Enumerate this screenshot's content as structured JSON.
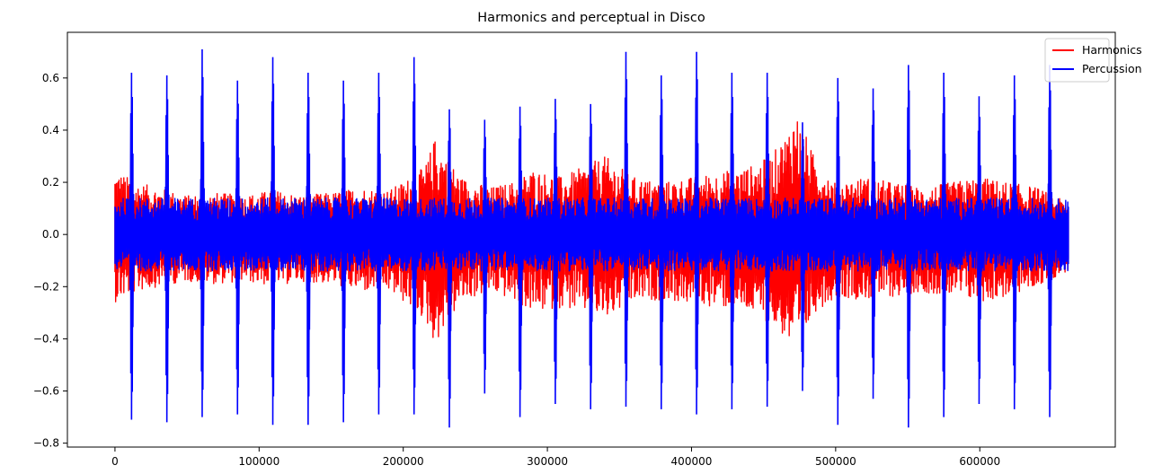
{
  "chart_data": {
    "type": "line",
    "title": "Harmonics and perceptual in Disco",
    "xlabel": "",
    "ylabel": "",
    "xlim": [
      -33000,
      694000
    ],
    "ylim": [
      -0.815,
      0.775
    ],
    "x_ticks": [
      0,
      100000,
      200000,
      300000,
      400000,
      500000,
      600000
    ],
    "x_tick_labels": [
      "0",
      "100000",
      "200000",
      "300000",
      "400000",
      "500000",
      "600000"
    ],
    "y_ticks": [
      -0.8,
      -0.6,
      -0.4,
      -0.2,
      0.0,
      0.2,
      0.4,
      0.6
    ],
    "y_tick_labels": [
      "−0.8",
      "−0.6",
      "−0.4",
      "−0.2",
      "0.0",
      "0.2",
      "0.4",
      "0.6"
    ],
    "grid": false,
    "legend_position": "top-right",
    "x_range_samples": [
      0,
      661500
    ],
    "series": [
      {
        "name": "Harmonics",
        "color": "#ff0000",
        "envelope_x": [
          0,
          15000,
          30000,
          50000,
          70000,
          90000,
          110000,
          130000,
          150000,
          170000,
          190000,
          205000,
          215000,
          222000,
          230000,
          240000,
          260000,
          275000,
          290000,
          310000,
          325000,
          340000,
          360000,
          380000,
          400000,
          420000,
          440000,
          455000,
          465000,
          472000,
          478000,
          485000,
          500000,
          520000,
          540000,
          560000,
          580000,
          600000,
          620000,
          640000,
          661500
        ],
        "envelope_max": [
          0.25,
          0.2,
          0.18,
          0.15,
          0.16,
          0.15,
          0.17,
          0.15,
          0.16,
          0.18,
          0.17,
          0.22,
          0.26,
          0.37,
          0.3,
          0.22,
          0.18,
          0.2,
          0.25,
          0.22,
          0.26,
          0.3,
          0.22,
          0.2,
          0.22,
          0.24,
          0.26,
          0.3,
          0.38,
          0.48,
          0.4,
          0.3,
          0.2,
          0.22,
          0.2,
          0.18,
          0.2,
          0.22,
          0.2,
          0.18,
          0.12
        ],
        "envelope_min": [
          -0.26,
          -0.22,
          -0.2,
          -0.18,
          -0.19,
          -0.18,
          -0.2,
          -0.18,
          -0.19,
          -0.22,
          -0.22,
          -0.28,
          -0.33,
          -0.42,
          -0.35,
          -0.26,
          -0.22,
          -0.25,
          -0.3,
          -0.28,
          -0.3,
          -0.33,
          -0.26,
          -0.25,
          -0.27,
          -0.28,
          -0.3,
          -0.34,
          -0.4,
          -0.46,
          -0.4,
          -0.3,
          -0.24,
          -0.25,
          -0.24,
          -0.22,
          -0.24,
          -0.26,
          -0.24,
          -0.2,
          -0.14
        ]
      },
      {
        "name": "Percussion",
        "color": "#0000ff",
        "base_amplitude": 0.1,
        "spikes": [
          {
            "x": 11500,
            "max": 0.62,
            "min": -0.71
          },
          {
            "x": 36000,
            "max": 0.61,
            "min": -0.72
          },
          {
            "x": 60500,
            "max": 0.71,
            "min": -0.7
          },
          {
            "x": 85000,
            "max": 0.59,
            "min": -0.69
          },
          {
            "x": 109500,
            "max": 0.68,
            "min": -0.73
          },
          {
            "x": 134000,
            "max": 0.62,
            "min": -0.73
          },
          {
            "x": 158500,
            "max": 0.59,
            "min": -0.72
          },
          {
            "x": 183000,
            "max": 0.62,
            "min": -0.69
          },
          {
            "x": 207500,
            "max": 0.68,
            "min": -0.69
          },
          {
            "x": 232000,
            "max": 0.48,
            "min": -0.74
          },
          {
            "x": 256500,
            "max": 0.44,
            "min": -0.61
          },
          {
            "x": 281000,
            "max": 0.49,
            "min": -0.7
          },
          {
            "x": 305500,
            "max": 0.52,
            "min": -0.65
          },
          {
            "x": 330000,
            "max": 0.5,
            "min": -0.67
          },
          {
            "x": 354500,
            "max": 0.7,
            "min": -0.66
          },
          {
            "x": 379000,
            "max": 0.61,
            "min": -0.67
          },
          {
            "x": 403500,
            "max": 0.7,
            "min": -0.69
          },
          {
            "x": 428000,
            "max": 0.62,
            "min": -0.67
          },
          {
            "x": 452500,
            "max": 0.62,
            "min": -0.66
          },
          {
            "x": 477000,
            "max": 0.43,
            "min": -0.6
          },
          {
            "x": 501500,
            "max": 0.6,
            "min": -0.73
          },
          {
            "x": 526000,
            "max": 0.56,
            "min": -0.63
          },
          {
            "x": 550500,
            "max": 0.65,
            "min": -0.74
          },
          {
            "x": 575000,
            "max": 0.62,
            "min": -0.7
          },
          {
            "x": 599500,
            "max": 0.53,
            "min": -0.65
          },
          {
            "x": 624000,
            "max": 0.61,
            "min": -0.67
          },
          {
            "x": 648500,
            "max": 0.65,
            "min": -0.7
          }
        ]
      }
    ]
  }
}
